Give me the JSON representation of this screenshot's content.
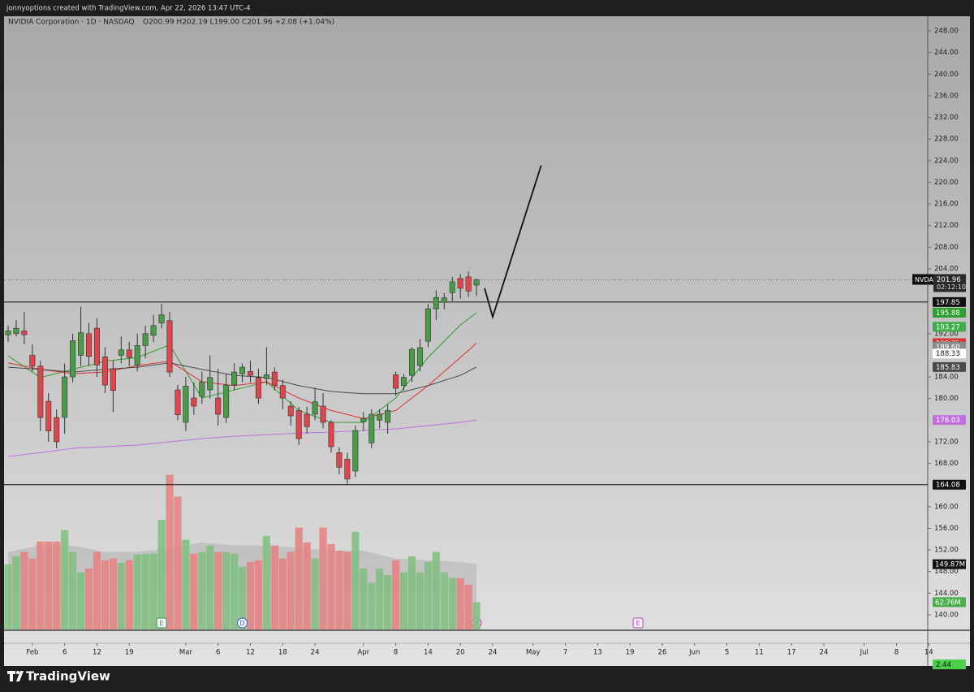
{
  "header": {
    "credit": "jonnyoptions created with TradingView.com, Apr 22, 2026 13:47 UTC-4",
    "brand": "TradingView"
  },
  "chart_data": {
    "type": "candlestick",
    "title": "NVIDIA Corporation · 1D · NASDAQ",
    "ohlc_text": "O200.99 H202.19 L199.00 C201.96 +2.08 (+1.04%)",
    "symbol": "NVDA",
    "countdown": "02:12:10",
    "open": [
      191.8,
      192,
      192.5,
      188,
      186,
      179.5,
      176.5,
      176.5,
      184,
      188,
      192,
      193,
      187.7,
      185.5,
      188,
      189,
      186.2,
      189.8,
      191.7,
      194,
      194.4,
      181.6,
      175.6,
      180.1,
      180.4,
      181.6,
      180.1,
      176.5,
      182.5,
      184.6,
      185,
      183.9,
      183.7,
      184.9,
      182.4,
      178.6,
      177.8,
      177.1,
      177.1,
      178.6,
      175.6,
      170,
      168.8,
      166.6,
      175.7,
      171.8,
      176,
      175.6,
      184.4,
      182.4,
      184.3,
      186.1,
      190.6,
      196.6,
      197.8,
      199.6,
      202.2,
      202.5,
      200.99
    ],
    "high": [
      193.5,
      194.5,
      196,
      190,
      187,
      181,
      178,
      186.5,
      192,
      197,
      194,
      194.8,
      189.5,
      187,
      191.5,
      190.5,
      192,
      193.5,
      195.5,
      197.5,
      196,
      182.5,
      184,
      183,
      185,
      188,
      185.5,
      184.5,
      186.5,
      186.5,
      187,
      185.5,
      189.5,
      185.8,
      183.5,
      179.5,
      178.5,
      178.5,
      182,
      181,
      176,
      171,
      170,
      175,
      177.5,
      178,
      178,
      179,
      185,
      184.5,
      189.5,
      191,
      197.5,
      200,
      199.5,
      202.5,
      203,
      203.5,
      202.19
    ],
    "low": [
      190.5,
      191.5,
      190,
      185,
      174,
      172,
      170.8,
      173.5,
      183,
      186,
      186,
      184,
      181,
      177.5,
      186.5,
      186,
      185,
      187.5,
      190.5,
      193,
      184,
      176,
      174,
      177,
      179,
      180,
      175,
      175.5,
      181.5,
      183,
      183,
      179,
      182.5,
      181.5,
      178,
      175,
      171.4,
      173.5,
      176,
      174.5,
      170,
      166,
      164.08,
      165.5,
      174,
      170.8,
      174.5,
      173.5,
      180.5,
      181.5,
      183,
      185,
      189.5,
      194.5,
      196.5,
      198,
      198.5,
      198.8,
      199
    ],
    "close": [
      192.5,
      193,
      191.8,
      186,
      176.5,
      174,
      172,
      184,
      190.7,
      192.2,
      187.8,
      186.2,
      182.5,
      181.5,
      189,
      187.6,
      189.8,
      192,
      193.5,
      195.5,
      184.9,
      177,
      182.3,
      178.6,
      183.1,
      183.9,
      177.1,
      182.5,
      184.9,
      185.8,
      184.3,
      180.1,
      184.4,
      182.4,
      180.1,
      176.8,
      172.6,
      174.8,
      179.4,
      175.6,
      171.1,
      167.3,
      165.1,
      174.1,
      176.3,
      177.1,
      177.1,
      177.8,
      181.9,
      183.9,
      189.1,
      189.4,
      196.6,
      198.7,
      198.6,
      201.6,
      200.4,
      199.88,
      201.96
    ],
    "volume": [
      150,
      168,
      178,
      163,
      202,
      202,
      202,
      228,
      178,
      131,
      140,
      178,
      159,
      163,
      153,
      159,
      172,
      174,
      174,
      252,
      355,
      305,
      206,
      174,
      178,
      193,
      178,
      178,
      174,
      144,
      155,
      159,
      215,
      193,
      163,
      178,
      234,
      200,
      163,
      234,
      196,
      181,
      178,
      224,
      140,
      107,
      140,
      125,
      159,
      131,
      168,
      131,
      155,
      178,
      131,
      118,
      118,
      103,
      62.76
    ],
    "volume_end_label": "62.76M",
    "volume_ylim": [
      0,
      360
    ],
    "colors": {
      "up": "#4a9a4a",
      "down": "#e0444c",
      "volume_up": "#7fc07f",
      "volume_down": "#e88080"
    },
    "ma_x": [
      0,
      4,
      8,
      12,
      16,
      20,
      24,
      28,
      32,
      36,
      40,
      44,
      48,
      52,
      56,
      58
    ],
    "moving_averages": [
      {
        "color": "#2e9e2e",
        "values": [
          187.9,
          183.9,
          185.4,
          186.9,
          187.6,
          189.9,
          180.1,
          181.6,
          183.1,
          177.8,
          175.6,
          175.6,
          180.1,
          187.6,
          193.6,
          195.88
        ]
      },
      {
        "color": "#e03030",
        "values": [
          186.6,
          185.4,
          184.6,
          184.9,
          186.1,
          186.9,
          183.1,
          182.4,
          183.1,
          180.1,
          177.8,
          176.3,
          177.8,
          182.4,
          187.6,
          190.25
        ]
      },
      {
        "color": "#4a4a4a",
        "values": [
          185.8,
          185.4,
          184.9,
          185.4,
          185.8,
          186.6,
          185.4,
          184.3,
          183.9,
          182.4,
          181.3,
          180.9,
          180.9,
          182.4,
          184.3,
          185.83
        ]
      },
      {
        "color": "#c070e0",
        "values": [
          169.3,
          170,
          170.8,
          171.1,
          171.4,
          172,
          172.6,
          173,
          173.3,
          173.6,
          173.8,
          174.1,
          174.4,
          175,
          175.6,
          176.03
        ]
      }
    ],
    "volume_ma": {
      "color": "#9a9a9a",
      "values": [
        178,
        193,
        193,
        178,
        178,
        187,
        200,
        193,
        193,
        187,
        181,
        181,
        163,
        159,
        155,
        149.87
      ],
      "end_label": "149.87M"
    },
    "hlines": [
      197.85,
      164.08
    ],
    "extra_labels": [
      {
        "value": 193.27,
        "color": "#3fae4a"
      },
      {
        "value": {
          "value": 189.6,
          "label": "189.60"
        },
        "color": "#8a8a8a"
      },
      {
        "value": 188.33,
        "color": "#ffffff"
      }
    ],
    "drawing": {
      "x": [
        59,
        60,
        66
      ],
      "y": [
        200.4,
        195.1,
        223.1
      ]
    },
    "events": [
      {
        "x": 19,
        "label": "E"
      },
      {
        "x": 29,
        "label": "D"
      },
      {
        "x": 78,
        "label": "E"
      }
    ],
    "indicator_label": 2.44,
    "ylim": [
      140,
      248
    ],
    "yticks": [
      {
        "value": 248,
        "label": "248.00"
      },
      {
        "value": 244,
        "label": "244.00"
      },
      {
        "value": 240,
        "label": "240.00"
      },
      {
        "value": 236,
        "label": "236.00"
      },
      {
        "value": 232,
        "label": "232.00"
      },
      {
        "value": 228,
        "label": "228.00"
      },
      {
        "value": 224,
        "label": "224.00"
      },
      {
        "value": 220,
        "label": "220.00"
      },
      {
        "value": 216,
        "label": "216.00"
      },
      {
        "value": 212,
        "label": "212.00"
      },
      {
        "value": 208,
        "label": "208.00"
      },
      {
        "value": 204,
        "label": "204.00"
      },
      {
        "value": 192,
        "label": "192.00"
      },
      {
        "value": 184,
        "label": "184.00"
      },
      {
        "value": 180,
        "label": "180.00"
      },
      {
        "value": 172,
        "label": "172.00"
      },
      {
        "value": 168,
        "label": "168.00"
      },
      {
        "value": 160,
        "label": "160.00"
      },
      {
        "value": 156,
        "label": "156.00"
      },
      {
        "value": 152,
        "label": "152.00"
      },
      {
        "value": 148,
        "label": "148.00"
      },
      {
        "value": 144,
        "label": "144.00"
      },
      {
        "value": 140,
        "label": "140.00"
      }
    ],
    "xticks": [
      {
        "value": 3,
        "label": "Feb"
      },
      {
        "value": 7,
        "label": "6"
      },
      {
        "value": 11,
        "label": "12"
      },
      {
        "value": 15,
        "label": "19"
      },
      {
        "value": 22,
        "label": "Mar"
      },
      {
        "value": 26,
        "label": "6"
      },
      {
        "value": 30,
        "label": "12"
      },
      {
        "value": 34,
        "label": "18"
      },
      {
        "value": 38,
        "label": "24"
      },
      {
        "value": 44,
        "label": "Apr"
      },
      {
        "value": 48,
        "label": "8"
      },
      {
        "value": 52,
        "label": "14"
      },
      {
        "value": 56,
        "label": "20"
      },
      {
        "value": 60,
        "label": "24"
      },
      {
        "value": 65,
        "label": "May"
      },
      {
        "value": 69,
        "label": "7"
      },
      {
        "value": 73,
        "label": "13"
      },
      {
        "value": 77,
        "label": "19"
      },
      {
        "value": 81,
        "label": "26"
      },
      {
        "value": 85,
        "label": "Jun"
      },
      {
        "value": 89,
        "label": "5"
      },
      {
        "value": 93,
        "label": "11"
      },
      {
        "value": 97,
        "label": "17"
      },
      {
        "value": 101,
        "label": "24"
      },
      {
        "value": 106,
        "label": "Jul"
      },
      {
        "value": 110,
        "label": "8"
      },
      {
        "value": 114,
        "label": "14"
      }
    ]
  }
}
